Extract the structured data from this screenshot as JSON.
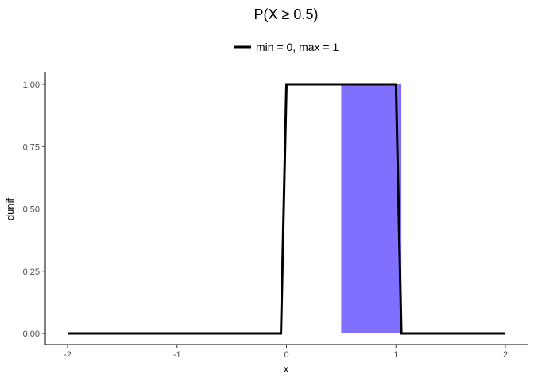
{
  "chart_data": {
    "type": "line",
    "title": "P(X ≥ 0.5)",
    "xlabel": "x",
    "ylabel": "dunif",
    "xlim": [
      -2,
      2
    ],
    "ylim": [
      0,
      1
    ],
    "x_ticks": [
      -2,
      -1,
      0,
      1,
      2
    ],
    "x_tick_labels": [
      "-2",
      "-1",
      "0",
      "1",
      "2"
    ],
    "y_ticks": [
      0,
      0.25,
      0.5,
      0.75,
      1
    ],
    "y_tick_labels": [
      "0.00",
      "0.25",
      "0.50",
      "0.75",
      "1.00"
    ],
    "grid": false,
    "legend_position": "top",
    "series": [
      {
        "name": "min = 0, max = 1",
        "color": "#000000",
        "x": [
          -2,
          -0.05,
          0,
          1,
          1.05,
          2
        ],
        "y": [
          0,
          0,
          1,
          1,
          0,
          0
        ]
      }
    ],
    "shaded_region": {
      "x": [
        0.5,
        1.05
      ],
      "y": [
        0,
        1
      ],
      "color": "#8070ff"
    }
  }
}
